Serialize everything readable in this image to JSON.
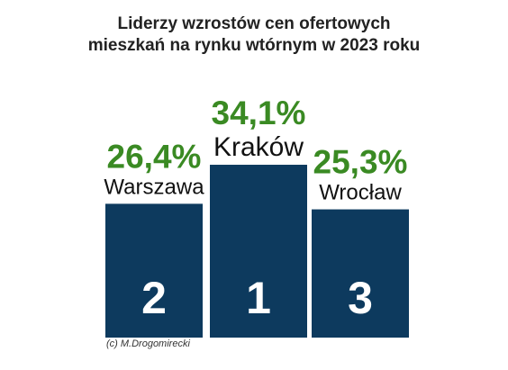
{
  "chart_data": {
    "type": "bar",
    "title_lines": [
      "Liderzy wzrostów cen ofertowych",
      "mieszkań na rynku wtórnym w 2023 roku"
    ],
    "categories": [
      "Warszawa",
      "Kraków",
      "Wrocław"
    ],
    "values": [
      26.4,
      34.1,
      25.3
    ],
    "value_labels": [
      "26,4%",
      "34,1%",
      "25,3%"
    ],
    "ranks": [
      "2",
      "1",
      "3"
    ],
    "unit": "%",
    "credit": "(c) M.Drogomirecki",
    "colors": {
      "bar": "#0d3a5e",
      "value_text": "#3a8a23",
      "rank_text": "#ffffff"
    }
  }
}
